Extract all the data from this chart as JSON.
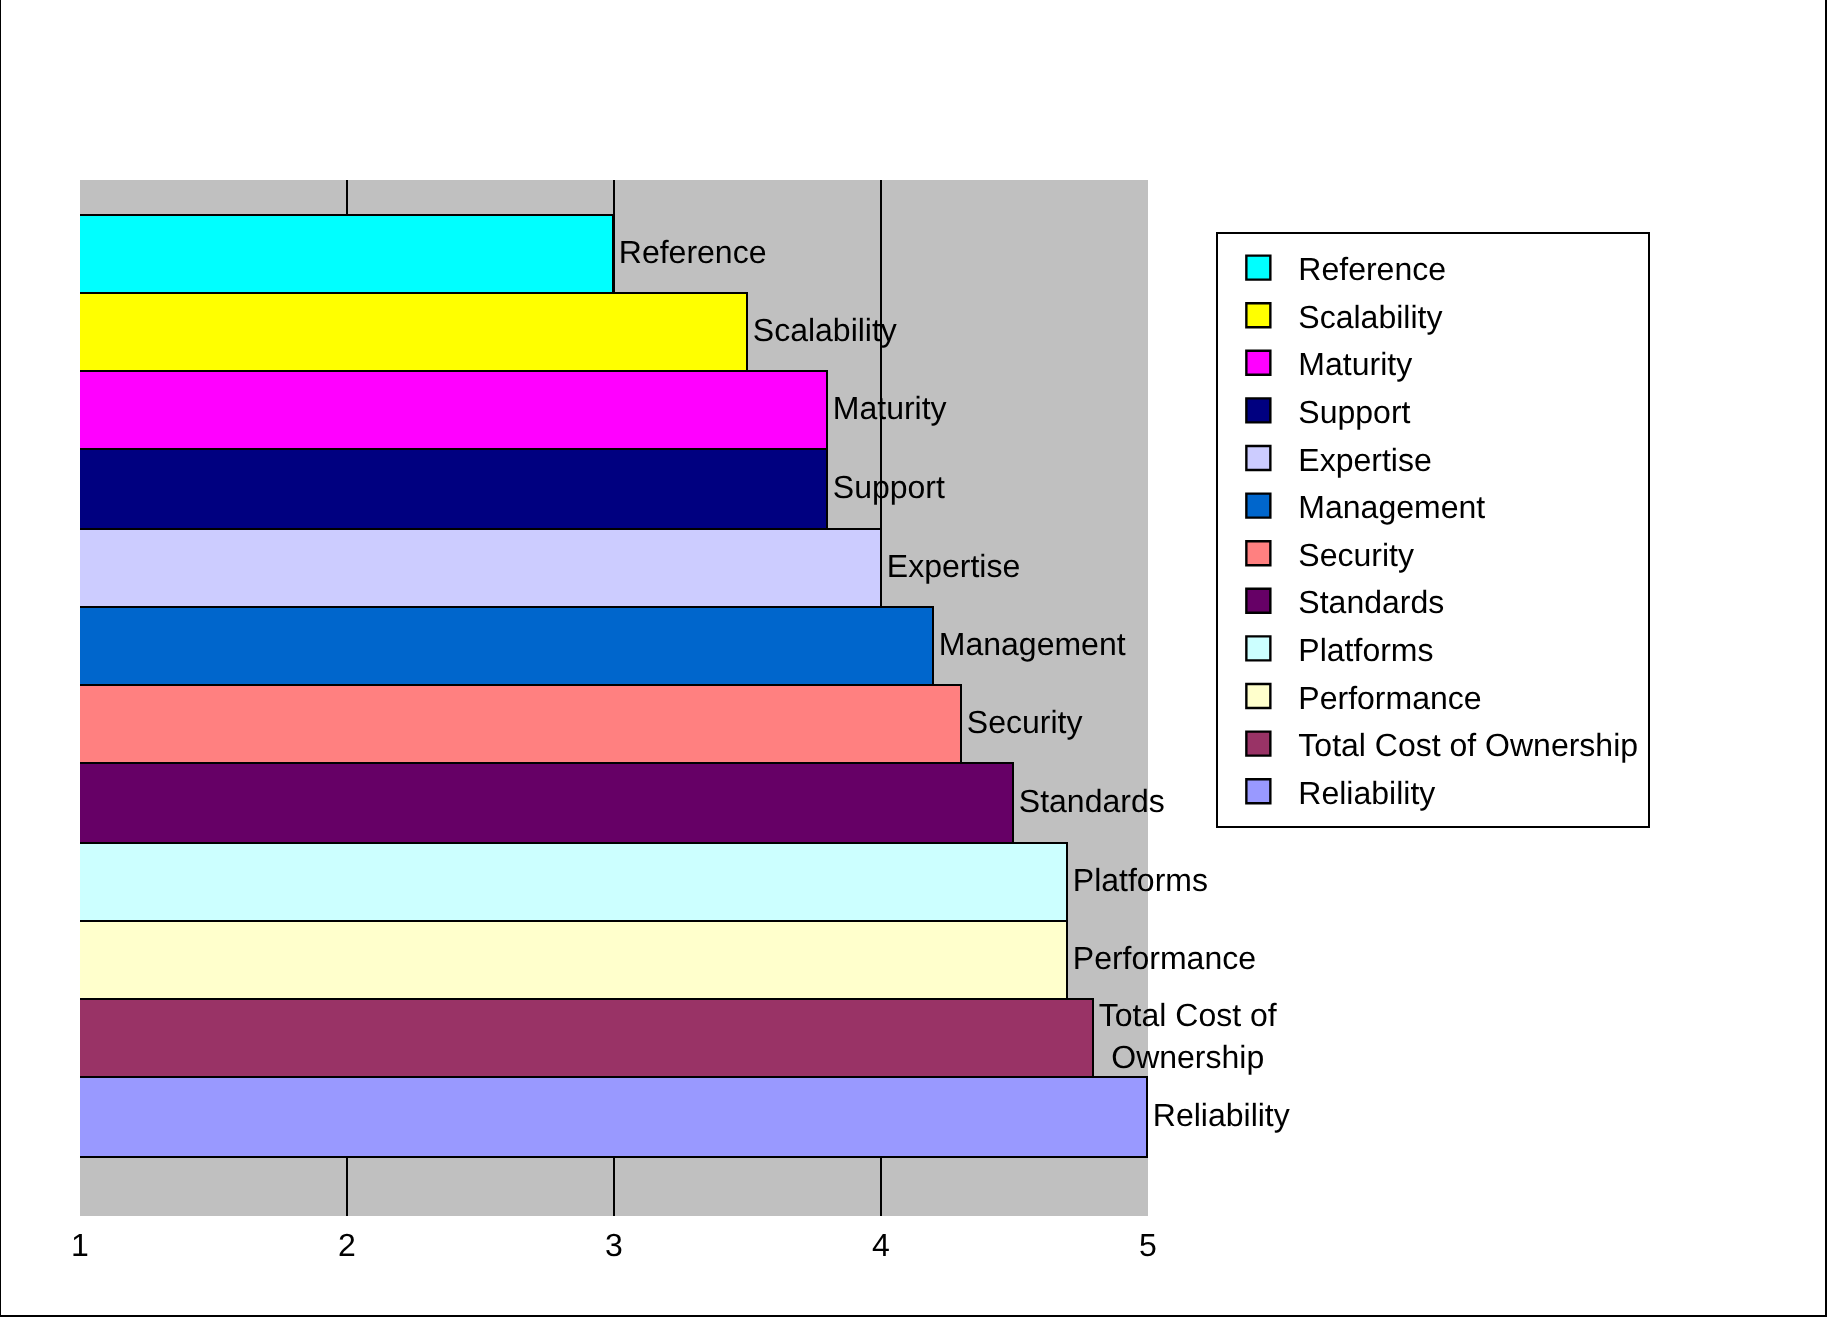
{
  "chart_data": {
    "type": "bar",
    "orientation": "horizontal",
    "stacked": true,
    "categories": [
      null,
      null,
      null,
      null,
      null,
      null,
      null,
      null,
      null,
      null,
      null,
      null
    ],
    "series": [
      {
        "name": "Reference",
        "color": "#00ffff",
        "values": [
          3.0,
          null,
          null,
          null,
          null,
          null,
          null,
          null,
          null,
          null,
          null,
          null
        ]
      },
      {
        "name": "Scalability",
        "color": "#ffff00",
        "values": [
          null,
          3.5,
          null,
          null,
          null,
          null,
          null,
          null,
          null,
          null,
          null,
          null
        ]
      },
      {
        "name": "Maturity",
        "color": "#ff00ff",
        "values": [
          null,
          null,
          3.8,
          null,
          null,
          null,
          null,
          null,
          null,
          null,
          null,
          null
        ]
      },
      {
        "name": "Support",
        "color": "#000080",
        "values": [
          null,
          null,
          null,
          3.8,
          null,
          null,
          null,
          null,
          null,
          null,
          null,
          null
        ]
      },
      {
        "name": "Expertise",
        "color": "#ccccff",
        "values": [
          null,
          null,
          null,
          null,
          4.0,
          null,
          null,
          null,
          null,
          null,
          null,
          null
        ]
      },
      {
        "name": "Management",
        "color": "#0066cc",
        "values": [
          null,
          null,
          null,
          null,
          null,
          4.2,
          null,
          null,
          null,
          null,
          null,
          null
        ]
      },
      {
        "name": "Security",
        "color": "#ff8080",
        "values": [
          null,
          null,
          null,
          null,
          null,
          null,
          4.3,
          null,
          null,
          null,
          null,
          null
        ]
      },
      {
        "name": "Standards",
        "color": "#660066",
        "values": [
          null,
          null,
          null,
          null,
          null,
          null,
          null,
          4.5,
          null,
          null,
          null,
          null
        ]
      },
      {
        "name": "Platforms",
        "color": "#ccffff",
        "values": [
          null,
          null,
          null,
          null,
          null,
          null,
          null,
          null,
          4.7,
          null,
          null,
          null
        ]
      },
      {
        "name": "Performance",
        "color": "#ffffcc",
        "values": [
          null,
          null,
          null,
          null,
          null,
          null,
          null,
          null,
          null,
          4.7,
          null,
          null
        ]
      },
      {
        "name": "Total Cost of Ownership",
        "color": "#993366",
        "values": [
          null,
          null,
          null,
          null,
          null,
          null,
          null,
          null,
          null,
          null,
          4.8,
          null
        ]
      },
      {
        "name": "Reliability",
        "color": "#9999ff",
        "values": [
          null,
          null,
          null,
          null,
          null,
          null,
          null,
          null,
          null,
          null,
          null,
          5.0
        ]
      }
    ],
    "xlim": [
      1,
      5
    ],
    "xticks": [
      1,
      2,
      3,
      4,
      5
    ],
    "grid": "x",
    "legend": "right",
    "tick_labels": "x"
  }
}
